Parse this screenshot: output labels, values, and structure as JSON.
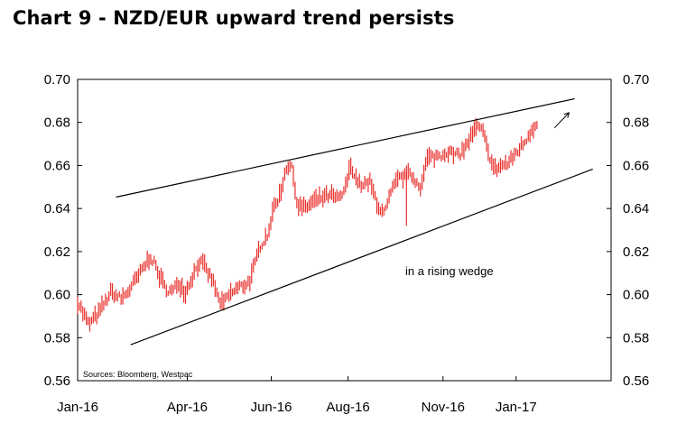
{
  "chart_data": {
    "type": "ohlc",
    "title": "Chart 9 - NZD/EUR upward trend persists",
    "source": "Sources: Bloomberg, Westpac",
    "annotation": "in a rising wedge",
    "ylim": [
      0.56,
      0.7
    ],
    "yticks": [
      "0.70",
      "0.68",
      "0.66",
      "0.64",
      "0.62",
      "0.60",
      "0.58",
      "0.56"
    ],
    "xticks": [
      "Jan-16",
      "Apr-16",
      "Jun-16",
      "Aug-16",
      "Nov-16",
      "Jan-17"
    ],
    "xtick_months": [
      0,
      3,
      5.3,
      7.4,
      10,
      12
    ],
    "xlim_months": [
      0,
      14.6
    ],
    "colors": {
      "series": "#e8302c",
      "lines": "#000000",
      "axis": "#000000"
    },
    "trendlines": [
      {
        "name": "upper-wedge-line",
        "from": {
          "month": 1.05,
          "value": 0.6453
        },
        "to": {
          "month": 13.6,
          "value": 0.691
        }
      },
      {
        "name": "lower-wedge-line",
        "from": {
          "month": 1.45,
          "value": 0.5767
        },
        "to": {
          "month": 14.1,
          "value": 0.6583
        }
      }
    ],
    "arrow": {
      "from": {
        "month": 13.05,
        "value": 0.6775
      },
      "to": {
        "month": 13.45,
        "value": 0.6845
      }
    },
    "series": [
      {
        "name": "NZD/EUR",
        "anchors": [
          [
            0.0,
            0.597
          ],
          [
            0.3,
            0.586
          ],
          [
            0.6,
            0.592
          ],
          [
            0.9,
            0.601
          ],
          [
            1.2,
            0.598
          ],
          [
            1.45,
            0.603
          ],
          [
            1.75,
            0.611
          ],
          [
            2.0,
            0.618
          ],
          [
            2.2,
            0.61
          ],
          [
            2.4,
            0.603
          ],
          [
            2.6,
            0.601
          ],
          [
            2.75,
            0.606
          ],
          [
            2.95,
            0.601
          ],
          [
            3.15,
            0.609
          ],
          [
            3.35,
            0.616
          ],
          [
            3.5,
            0.612
          ],
          [
            3.7,
            0.606
          ],
          [
            3.85,
            0.598
          ],
          [
            3.97,
            0.595
          ],
          [
            4.1,
            0.599
          ],
          [
            4.3,
            0.602
          ],
          [
            4.5,
            0.604
          ],
          [
            4.7,
            0.606
          ],
          [
            4.85,
            0.614
          ],
          [
            5.0,
            0.623
          ],
          [
            5.2,
            0.628
          ],
          [
            5.35,
            0.64
          ],
          [
            5.55,
            0.647
          ],
          [
            5.7,
            0.66
          ],
          [
            5.85,
            0.659
          ],
          [
            6.0,
            0.642
          ],
          [
            6.2,
            0.64
          ],
          [
            6.45,
            0.643
          ],
          [
            6.7,
            0.645
          ],
          [
            6.95,
            0.646
          ],
          [
            7.15,
            0.644
          ],
          [
            7.35,
            0.65
          ],
          [
            7.45,
            0.662
          ],
          [
            7.55,
            0.656
          ],
          [
            7.75,
            0.65
          ],
          [
            8.0,
            0.652
          ],
          [
            8.2,
            0.642
          ],
          [
            8.4,
            0.637
          ],
          [
            8.55,
            0.646
          ],
          [
            8.75,
            0.653
          ],
          [
            9.0,
            0.656
          ],
          [
            9.2,
            0.654
          ],
          [
            9.4,
            0.65
          ],
          [
            9.55,
            0.663
          ],
          [
            9.75,
            0.664
          ],
          [
            9.95,
            0.665
          ],
          [
            10.15,
            0.667
          ],
          [
            10.35,
            0.664
          ],
          [
            10.55,
            0.667
          ],
          [
            10.75,
            0.673
          ],
          [
            10.95,
            0.678
          ],
          [
            11.1,
            0.675
          ],
          [
            11.25,
            0.665
          ],
          [
            11.4,
            0.658
          ],
          [
            11.6,
            0.66
          ],
          [
            11.8,
            0.661
          ],
          [
            12.0,
            0.666
          ],
          [
            12.2,
            0.67
          ],
          [
            12.4,
            0.676
          ],
          [
            12.6,
            0.681
          ]
        ],
        "spikes": [
          {
            "month": 9.0,
            "low": 0.632
          }
        ]
      }
    ]
  }
}
